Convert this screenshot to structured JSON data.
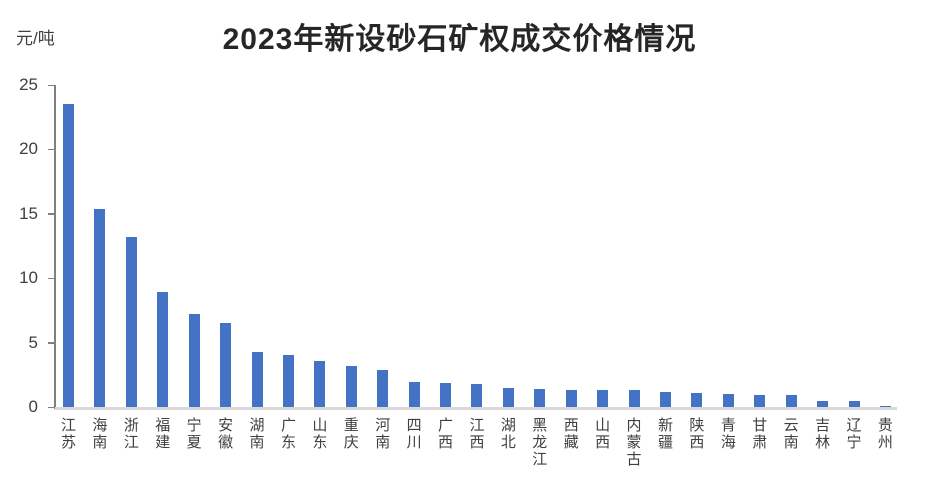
{
  "chart_data": {
    "type": "bar",
    "title": "2023年新设砂石矿权成交价格情况",
    "unit_label": "元/吨",
    "categories": [
      "江苏",
      "海南",
      "浙江",
      "福建",
      "宁夏",
      "安徽",
      "湖南",
      "广东",
      "山东",
      "重庆",
      "河南",
      "四川",
      "广西",
      "江西",
      "湖北",
      "黑龙江",
      "西藏",
      "山西",
      "内蒙古",
      "新疆",
      "陕西",
      "青海",
      "甘肃",
      "云南",
      "吉林",
      "辽宁",
      "贵州"
    ],
    "values": [
      23.5,
      15.4,
      13.2,
      8.9,
      7.2,
      6.5,
      4.3,
      4.0,
      3.55,
      3.2,
      2.85,
      1.95,
      1.9,
      1.75,
      1.5,
      1.4,
      1.3,
      1.3,
      1.35,
      1.15,
      1.05,
      1.0,
      0.9,
      0.9,
      0.5,
      0.5,
      0.1
    ],
    "xlabel": "",
    "ylabel": "元/吨",
    "ylim": [
      0,
      25
    ],
    "yticks": [
      25,
      20,
      15,
      10,
      5,
      0
    ],
    "grid": false,
    "legend": false,
    "colors": {
      "bar": "#4472c4",
      "axis_line": "#808080",
      "baseline": "#d9d9d9",
      "tick_text": "#404040",
      "title_text": "#262626"
    }
  }
}
